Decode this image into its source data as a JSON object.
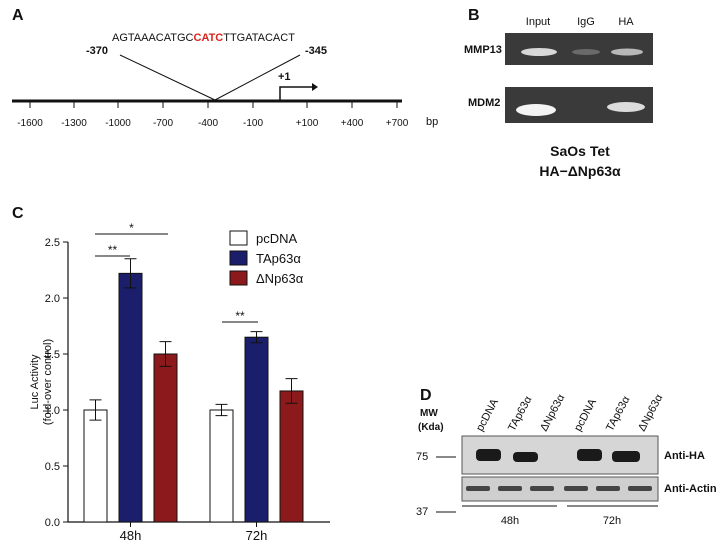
{
  "panel_a": {
    "label": "A",
    "sequence": [
      "AGTAAACATGC",
      "CATC",
      "TTGATACACT"
    ],
    "start": "-370",
    "end": "-345",
    "tss": "+1",
    "ticks": [
      "-1600",
      "-1300",
      "-1000",
      "-700",
      "-400",
      "-100",
      "+100",
      "+400",
      "+700"
    ],
    "unit": "bp"
  },
  "panel_b": {
    "label": "B",
    "lanes": [
      "Input",
      "IgG",
      "HA"
    ],
    "rows": [
      "MMP13",
      "MDM2"
    ],
    "caption": [
      "SaOs Tet",
      "HA−ΔNp63α"
    ]
  },
  "panel_c_label": "C",
  "chart_data": {
    "type": "bar",
    "ylabel": [
      "Luc Activity",
      "(fold-over control)"
    ],
    "categories": [
      "48h",
      "72h"
    ],
    "series": [
      {
        "name": "pcDNA",
        "color": "#ffffff",
        "values": [
          1.0,
          1.0
        ],
        "errors": [
          0.09,
          0.05
        ]
      },
      {
        "name": "TAp63α",
        "color": "#1b1e6b",
        "values": [
          2.22,
          1.65
        ],
        "errors": [
          0.13,
          0.05
        ]
      },
      {
        "name": "ΔNp63α",
        "color": "#8c1a1c",
        "values": [
          1.5,
          1.17
        ],
        "errors": [
          0.11,
          0.11
        ]
      }
    ],
    "ylim": [
      0,
      2.5
    ],
    "yticks": [
      {
        "value": 0,
        "label": "0.0"
      },
      {
        "value": 0.5,
        "label": "0.5"
      },
      {
        "value": 1,
        "label": "1.0"
      },
      {
        "value": 1.5,
        "label": "1.5"
      },
      {
        "value": 2,
        "label": "2.0"
      },
      {
        "value": 2.5,
        "label": "2.5"
      }
    ],
    "annotations": [
      "**",
      "*",
      "**"
    ],
    "legend": "top-right"
  },
  "panel_d": {
    "label": "D",
    "mw_label": [
      "MW",
      "(Kda)"
    ],
    "lanes": [
      "pcDNA",
      "TAp63α",
      "ΔNp63α",
      "pcDNA",
      "TAp63α",
      "ΔNp63α"
    ],
    "markers": [
      "75",
      "37"
    ],
    "rows": [
      "Anti-HA",
      "Anti-Actin"
    ],
    "groups": [
      "48h",
      "72h"
    ]
  }
}
